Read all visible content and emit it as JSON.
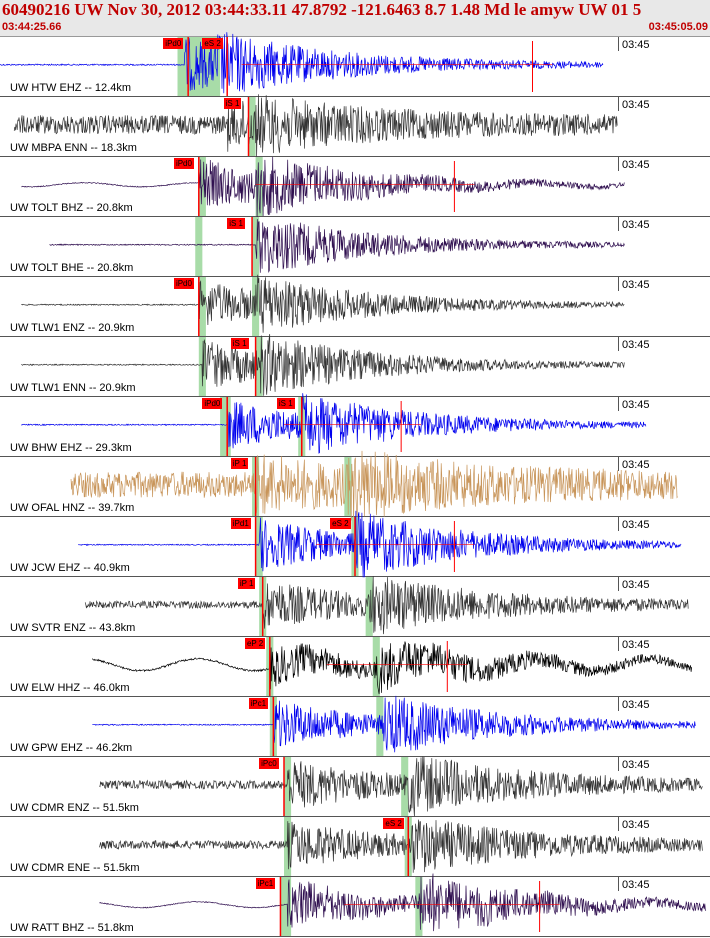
{
  "header": {
    "title": "60490216 UW Nov 30, 2012 03:44:33.11   47.8792 -121.6463  8.7 1.48 Md le amyw UW 01    5",
    "start_time": "03:44:25.66",
    "end_time": "03:45:05.09"
  },
  "colors": {
    "pick": "#ff0000",
    "window": "#a8dca8",
    "blue": "#0000ee",
    "gray": "#333333",
    "navy": "#301050",
    "tan": "#c8955a",
    "black": "#000000"
  },
  "channels": [
    {
      "label": "UW HTW EHZ -- 12.4km",
      "time": "03:45",
      "color": "#0000ee",
      "start": 0.0,
      "end": 0.85,
      "pre": "flat",
      "p": 0.26,
      "s": 0.305,
      "win": [
        0.25,
        0.31
      ],
      "picks": [
        {
          "text": "iPd0",
          "x": 0.23
        },
        {
          "text": "eS 2",
          "x": 0.285
        }
      ],
      "ampl": 0.45,
      "noise": 0.03,
      "wave": 0.0,
      "marker": 0.75
    },
    {
      "label": "UW MBPA ENN -- 18.3km",
      "time": "03:45",
      "color": "#333333",
      "start": 0.02,
      "end": 0.87,
      "pre": "noise",
      "p": 0.32,
      "s": 0.36,
      "win": [
        0.35,
        0.36
      ],
      "picks": [
        {
          "text": "iS 1",
          "x": 0.315
        }
      ],
      "ampl": 0.3,
      "noise": 0.16,
      "wave": 0.0,
      "marker": -1
    },
    {
      "label": "UW TOLT BHZ -- 20.8km",
      "time": "03:45",
      "color": "#301050",
      "start": 0.03,
      "end": 0.88,
      "pre": "wave",
      "p": 0.28,
      "s": 0.36,
      "win": [
        0.28,
        0.29,
        0.36,
        0.37
      ],
      "picks": [
        {
          "text": "iPd0",
          "x": 0.245
        }
      ],
      "ampl": 0.42,
      "noise": 0.02,
      "wave": 0.07,
      "marker": 0.64
    },
    {
      "label": "UW TOLT BHE -- 20.8km",
      "time": "03:45",
      "color": "#301050",
      "start": 0.07,
      "end": 0.88,
      "pre": "flat",
      "p": 0.36,
      "s": 0.36,
      "win": [
        0.275,
        0.285,
        0.355,
        0.365
      ],
      "picks": [
        {
          "text": "iS 1",
          "x": 0.32
        }
      ],
      "ampl": 0.4,
      "noise": 0.02,
      "wave": 0.0,
      "marker": -1
    },
    {
      "label": "UW TLW1 ENZ -- 20.9km",
      "time": "03:45",
      "color": "#333333",
      "start": 0.03,
      "end": 0.88,
      "pre": "flat",
      "p": 0.28,
      "s": 0.36,
      "win": [
        0.28,
        0.29,
        0.355,
        0.365
      ],
      "picks": [
        {
          "text": "iPd0",
          "x": 0.245
        }
      ],
      "ampl": 0.4,
      "noise": 0.02,
      "wave": 0.0,
      "marker": -1
    },
    {
      "label": "UW TLW1 ENN -- 20.9km",
      "time": "03:45",
      "color": "#333333",
      "start": 0.03,
      "end": 0.88,
      "pre": "flat",
      "p": 0.285,
      "s": 0.365,
      "win": [
        0.28,
        0.29,
        0.36,
        0.37
      ],
      "picks": [
        {
          "text": "iS 1",
          "x": 0.325
        }
      ],
      "ampl": 0.42,
      "noise": 0.02,
      "wave": 0.0,
      "marker": -1
    },
    {
      "label": "UW BHW EHZ -- 29.3km",
      "time": "03:45",
      "color": "#0000ee",
      "start": 0.03,
      "end": 0.91,
      "pre": "flat",
      "p": 0.32,
      "s": 0.425,
      "win": [
        0.31,
        0.325,
        0.42,
        0.43
      ],
      "picks": [
        {
          "text": "iPd0",
          "x": 0.285
        },
        {
          "text": "iS 1",
          "x": 0.39
        }
      ],
      "ampl": 0.42,
      "noise": 0.02,
      "wave": 0.0,
      "marker": 0.565
    },
    {
      "label": "UW OFAL HNZ -- 39.7km",
      "time": "03:45",
      "color": "#c8955a",
      "start": 0.1,
      "end": 0.955,
      "pre": "noise",
      "p": 0.36,
      "s": 0.49,
      "win": [
        0.355,
        0.365,
        0.485,
        0.495
      ],
      "picks": [
        {
          "text": "iP 1",
          "x": 0.325
        }
      ],
      "ampl": 0.35,
      "noise": 0.22,
      "wave": 0.0,
      "marker": -1
    },
    {
      "label": "UW JCW EHZ -- 40.9km",
      "time": "03:45",
      "color": "#0000ee",
      "start": 0.11,
      "end": 0.96,
      "pre": "flat",
      "p": 0.365,
      "s": 0.5,
      "win": [
        0.36,
        0.37,
        0.495,
        0.505
      ],
      "picks": [
        {
          "text": "iPd1",
          "x": 0.325
        },
        {
          "text": "eS 2",
          "x": 0.465
        }
      ],
      "ampl": 0.45,
      "noise": 0.02,
      "wave": 0.0,
      "marker": 0.64
    },
    {
      "label": "UW SVTR ENZ -- 43.8km",
      "time": "03:45",
      "color": "#333333",
      "start": 0.12,
      "end": 0.97,
      "pre": "noise",
      "p": 0.37,
      "s": 0.52,
      "win": [
        0.365,
        0.375,
        0.515,
        0.525
      ],
      "picks": [
        {
          "text": "iP 1",
          "x": 0.335
        }
      ],
      "ampl": 0.38,
      "noise": 0.06,
      "wave": 0.0,
      "marker": -1
    },
    {
      "label": "UW ELW HHZ -- 46.0km",
      "time": "03:45",
      "color": "#000000",
      "start": 0.13,
      "end": 0.975,
      "pre": "wave",
      "p": 0.38,
      "s": 0.53,
      "win": [
        0.375,
        0.385,
        0.525,
        0.535
      ],
      "picks": [
        {
          "text": "eP 2",
          "x": 0.345
        }
      ],
      "ampl": 0.32,
      "noise": 0.04,
      "wave": 0.2,
      "marker": 0.63
    },
    {
      "label": "UW GPW EHZ -- 46.2km",
      "time": "03:45",
      "color": "#0000ee",
      "start": 0.13,
      "end": 0.98,
      "pre": "flat",
      "p": 0.385,
      "s": 0.54,
      "win": [
        0.38,
        0.39,
        0.53,
        0.54
      ],
      "picks": [
        {
          "text": "iPc1",
          "x": 0.35
        }
      ],
      "ampl": 0.42,
      "noise": 0.02,
      "wave": 0.0,
      "marker": -1
    },
    {
      "label": "UW CDMR ENZ -- 51.5km",
      "time": "03:45",
      "color": "#333333",
      "start": 0.14,
      "end": 0.99,
      "pre": "noise",
      "p": 0.405,
      "s": 0.575,
      "win": [
        0.4,
        0.41,
        0.565,
        0.575
      ],
      "picks": [
        {
          "text": "iPc0",
          "x": 0.365
        }
      ],
      "ampl": 0.38,
      "noise": 0.07,
      "wave": 0.0,
      "marker": -1
    },
    {
      "label": "UW CDMR ENE -- 51.5km",
      "time": "03:45",
      "color": "#333333",
      "start": 0.14,
      "end": 0.99,
      "pre": "noise",
      "p": 0.405,
      "s": 0.58,
      "win": [
        0.4,
        0.41,
        0.57,
        0.58
      ],
      "picks": [
        {
          "text": "eS 2",
          "x": 0.54
        }
      ],
      "ampl": 0.35,
      "noise": 0.07,
      "wave": 0.0,
      "marker": -1
    },
    {
      "label": "UW RATT BHZ -- 51.8km",
      "time": "03:45",
      "color": "#301050",
      "start": 0.14,
      "end": 0.995,
      "pre": "wave",
      "p": 0.405,
      "s": 0.59,
      "win": [
        0.395,
        0.41,
        0.585,
        0.595
      ],
      "picks": [
        {
          "text": "iPc1",
          "x": 0.36
        }
      ],
      "ampl": 0.42,
      "noise": 0.02,
      "wave": 0.1,
      "marker": 0.76
    }
  ]
}
